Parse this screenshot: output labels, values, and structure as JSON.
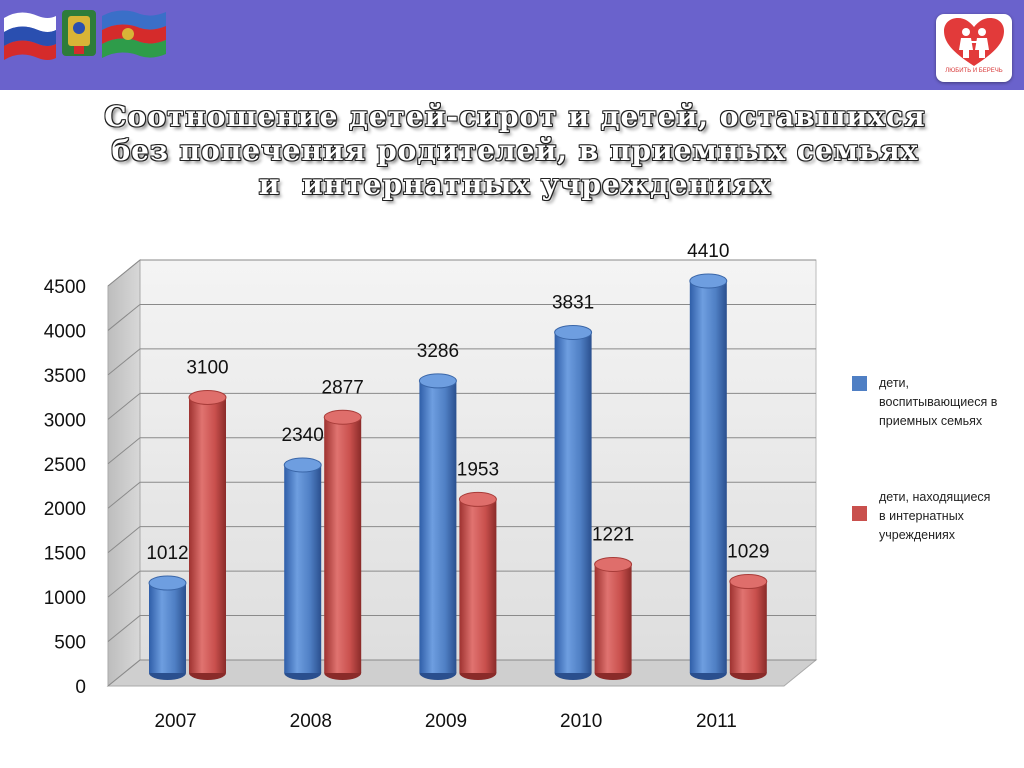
{
  "header": {
    "logo_text": "ЛЮБИТЬ И БЕРЕЧЬ",
    "flags_icon": "flags-of-russia-and-krasnodar-icon",
    "logo_icon": "heart-children-logo-icon"
  },
  "title_lines": [
    "Соотношение детей-сирот и детей, оставшихся",
    "без попечения родителей, в приемных семьях",
    "и  интернатных учреждениях"
  ],
  "colors": {
    "banner": "#6a62cc",
    "series_blue": "#4f7fc4",
    "series_red": "#c9504d"
  },
  "chart_data": {
    "type": "bar",
    "title": "",
    "xlabel": "",
    "ylabel": "",
    "categories": [
      "2007",
      "2008",
      "2009",
      "2010",
      "2011"
    ],
    "ylim": [
      0,
      4500
    ],
    "yticks": [
      0,
      500,
      1000,
      1500,
      2000,
      2500,
      3000,
      3500,
      4000,
      4500
    ],
    "grid": true,
    "legend_position": "right",
    "series": [
      {
        "name": "дети, воспитывающиеся в приемных семьях",
        "values": [
          1012,
          2340,
          3286,
          3831,
          4410
        ],
        "color": "#4f7fc4"
      },
      {
        "name": "дети, находящиеся в интернатных учреждениях",
        "values": [
          3100,
          2877,
          1953,
          1221,
          1029
        ],
        "color": "#c9504d"
      }
    ],
    "legend_lines": [
      [
        "дети,",
        "воспитывающиеся в",
        "приемных семьях"
      ],
      [
        "дети, находящиеся",
        "в интернатных",
        "учреждениях"
      ]
    ]
  }
}
